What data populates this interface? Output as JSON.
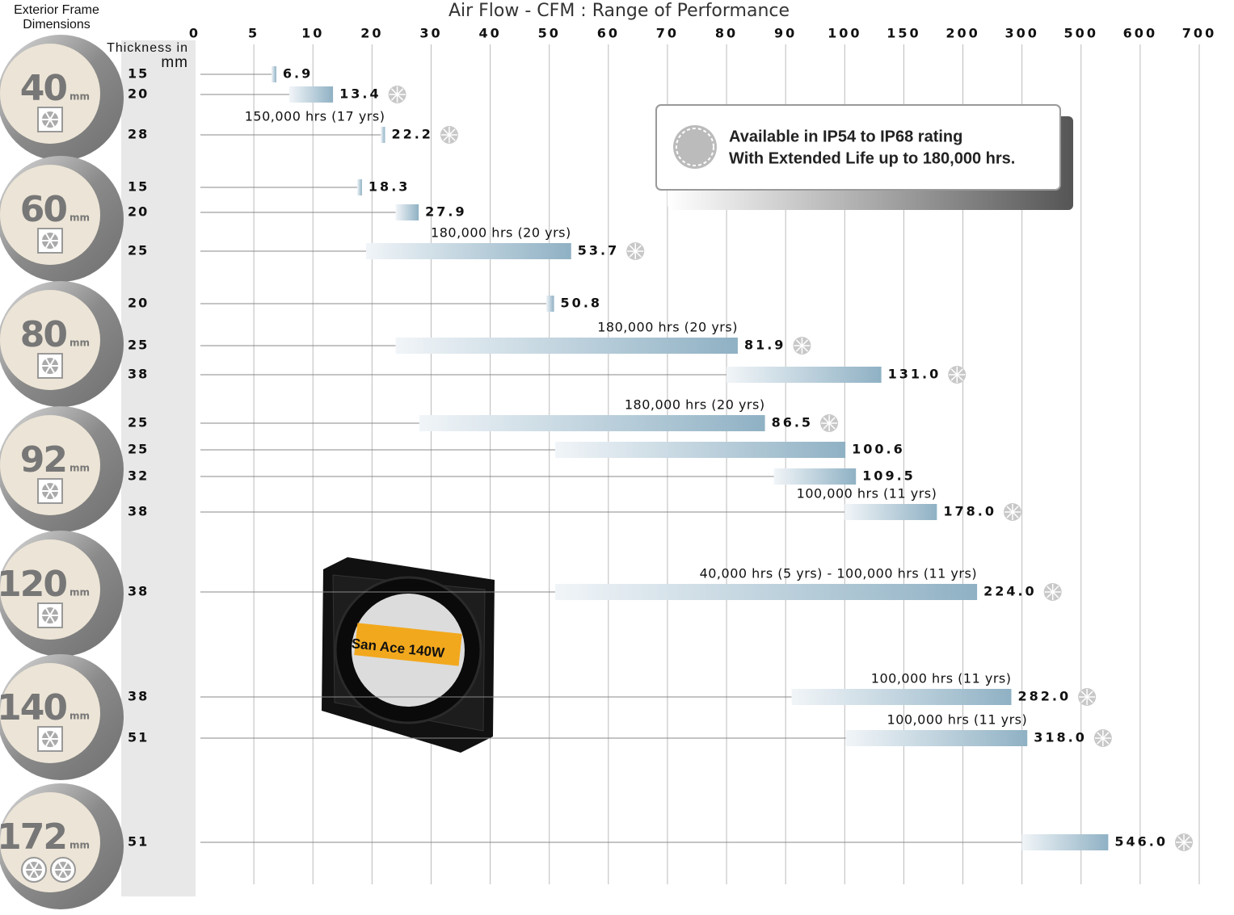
{
  "chart_data": {
    "type": "range-bar",
    "title": "Air Flow  - CFM : Range of Performance",
    "frame_label": [
      "Exterior Frame",
      "Dimensions"
    ],
    "thickness_label": "Thickness in",
    "thickness_unit": "mm",
    "xlim": [
      0,
      700
    ],
    "xticks": [
      0,
      5,
      10,
      20,
      30,
      40,
      50,
      60,
      70,
      80,
      90,
      100,
      150,
      200,
      300,
      500,
      600,
      700
    ],
    "grid": true,
    "bar_color": "#8fb1c4",
    "groups": [
      {
        "label": "40",
        "unit": "mm",
        "fans": 1,
        "rows": [
          {
            "thickness": "15",
            "start": 6.5,
            "value": 6.9,
            "ip": false
          },
          {
            "thickness": "20",
            "start": 8,
            "value": 13.4,
            "ip": true
          },
          {
            "thickness": "28",
            "start": 21.5,
            "value": 22.2,
            "ip": true,
            "life": "150,000 hrs (17 yrs)"
          }
        ]
      },
      {
        "label": "60",
        "unit": "mm",
        "fans": 1,
        "rows": [
          {
            "thickness": "15",
            "start": 17.5,
            "value": 18.3,
            "ip": false
          },
          {
            "thickness": "20",
            "start": 24,
            "value": 27.9,
            "ip": false
          },
          {
            "thickness": "25",
            "start": 19,
            "value": 53.7,
            "ip": true,
            "life": "180,000 hrs (20 yrs)"
          }
        ]
      },
      {
        "label": "80",
        "unit": "mm",
        "fans": 1,
        "rows": [
          {
            "thickness": "20",
            "start": 49.5,
            "value": 50.8,
            "ip": false
          },
          {
            "thickness": "25",
            "start": 24,
            "value": 81.9,
            "ip": true,
            "life": "180,000 hrs (20 yrs)"
          },
          {
            "thickness": "38",
            "start": 80,
            "value": 131,
            "value_label": "131.0",
            "ip": true
          }
        ]
      },
      {
        "label": "92",
        "unit": "mm",
        "fans": 1,
        "rows": [
          {
            "thickness": "25",
            "start": 28,
            "value": 86.5,
            "ip": true,
            "life": "180,000 hrs (20 yrs)"
          },
          {
            "thickness": "25",
            "start": 51,
            "value": 100.6,
            "ip": false
          },
          {
            "thickness": "32",
            "start": 88,
            "value": 109.5,
            "ip": false
          },
          {
            "thickness": "38",
            "start": 100,
            "value": 178,
            "value_label": "178.0",
            "ip": true,
            "life": "100,000 hrs (11 yrs)"
          }
        ]
      },
      {
        "label": "120",
        "unit": "mm",
        "fans": 1,
        "rows": [
          {
            "thickness": "38",
            "start": 51,
            "value": 224,
            "value_label": "224.0",
            "ip": true,
            "life": "40,000 hrs (5 yrs) - 100,000 hrs (11 yrs)"
          }
        ]
      },
      {
        "label": "140",
        "unit": "mm",
        "fans": 1,
        "rows": [
          {
            "thickness": "38",
            "start": 91,
            "value": 282,
            "value_label": "282.0",
            "ip": true,
            "life": "100,000 hrs (11 yrs)"
          },
          {
            "thickness": "51",
            "start": 101,
            "value": 318,
            "value_label": "318.0",
            "ip": true,
            "life": "100,000 hrs (11 yrs)"
          }
        ]
      },
      {
        "label": "172",
        "unit": "mm",
        "fans": 2,
        "rows": [
          {
            "thickness": "51",
            "start": 300,
            "value": 546,
            "value_label": "546.0",
            "ip": true
          }
        ]
      }
    ],
    "ip_note": [
      "Available in IP54 to IP68 rating",
      "With Extended Life up to 180,000 hrs."
    ],
    "product_label": "San Ace 140W"
  }
}
